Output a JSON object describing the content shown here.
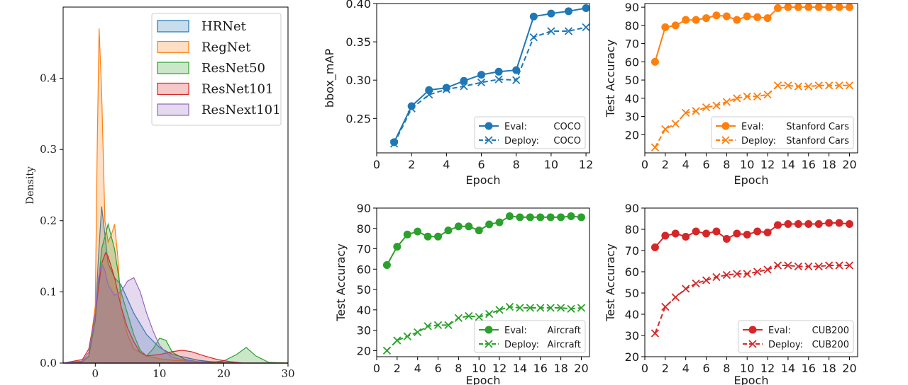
{
  "chart_data": [
    {
      "id": "kde",
      "type": "area",
      "title": "",
      "xlabel": "",
      "ylabel": "Density",
      "xlim": [
        -5,
        30
      ],
      "ylim": [
        0,
        0.5
      ],
      "xticks": [
        0,
        10,
        20,
        30
      ],
      "yticks": [
        0.0,
        0.1,
        0.2,
        0.3,
        0.4
      ],
      "legend": "top-right",
      "series": [
        {
          "name": "HRNet",
          "color": "#1f77b4",
          "x": [
            -5,
            -2,
            -1,
            0,
            0.5,
            1,
            1.5,
            2,
            3,
            4,
            5,
            6,
            8,
            10,
            12,
            14,
            16,
            18,
            20,
            22,
            24,
            26,
            28,
            30
          ],
          "y": [
            0,
            0.002,
            0.01,
            0.06,
            0.15,
            0.22,
            0.18,
            0.14,
            0.12,
            0.11,
            0.09,
            0.07,
            0.04,
            0.022,
            0.012,
            0.008,
            0.004,
            0.002,
            0.001,
            0,
            0,
            0,
            0,
            0
          ]
        },
        {
          "name": "RegNet",
          "color": "#ff7f0e",
          "x": [
            -5,
            -2,
            -1,
            0,
            0.3,
            0.6,
            1,
            1.5,
            2,
            2.5,
            3,
            3.5,
            4,
            5,
            6,
            8,
            10,
            12,
            14,
            16,
            18,
            20,
            25,
            30
          ],
          "y": [
            0,
            0.002,
            0.01,
            0.08,
            0.3,
            0.47,
            0.38,
            0.2,
            0.17,
            0.18,
            0.195,
            0.15,
            0.08,
            0.04,
            0.02,
            0.01,
            0.006,
            0.004,
            0.003,
            0.002,
            0.001,
            0,
            0,
            0
          ]
        },
        {
          "name": "ResNet50",
          "color": "#2ca02c",
          "x": [
            -5,
            -2,
            -1,
            0,
            1,
            2,
            3,
            4,
            5,
            6,
            7,
            8,
            9,
            10,
            11,
            12,
            14,
            16,
            18,
            20,
            22,
            23.5,
            25,
            27,
            30
          ],
          "y": [
            0,
            0.002,
            0.01,
            0.06,
            0.16,
            0.195,
            0.16,
            0.1,
            0.07,
            0.04,
            0.018,
            0.01,
            0.02,
            0.035,
            0.032,
            0.015,
            0.005,
            0.002,
            0.001,
            0.003,
            0.012,
            0.022,
            0.01,
            0.001,
            0
          ]
        },
        {
          "name": "ResNet101",
          "color": "#d62728",
          "x": [
            -5,
            -2,
            -1,
            0,
            1,
            1.6,
            2,
            3,
            4,
            5,
            6,
            7,
            8,
            10,
            12,
            13.5,
            15,
            17,
            19,
            21,
            23,
            25,
            30
          ],
          "y": [
            0,
            0.005,
            0.02,
            0.07,
            0.14,
            0.155,
            0.15,
            0.12,
            0.08,
            0.05,
            0.03,
            0.015,
            0.01,
            0.012,
            0.016,
            0.018,
            0.016,
            0.01,
            0.005,
            0.002,
            0,
            0,
            0
          ]
        },
        {
          "name": "ResNext101",
          "color": "#9467bd",
          "x": [
            -5,
            -2,
            -1,
            0,
            0.5,
            1,
            1.5,
            2,
            3,
            4,
            5,
            6,
            7,
            8,
            9,
            10,
            11,
            12,
            14,
            16,
            18,
            20,
            25,
            30
          ],
          "y": [
            0,
            0.003,
            0.015,
            0.07,
            0.12,
            0.14,
            0.13,
            0.11,
            0.095,
            0.1,
            0.115,
            0.12,
            0.1,
            0.07,
            0.045,
            0.025,
            0.015,
            0.008,
            0.004,
            0.002,
            0,
            0,
            0,
            0
          ]
        }
      ]
    },
    {
      "id": "coco",
      "type": "line",
      "xlabel": "Epoch",
      "ylabel": "bbox_mAP",
      "xlim": [
        0,
        12.2
      ],
      "ylim": [
        0.205,
        0.4
      ],
      "xticks": [
        0,
        2,
        4,
        6,
        8,
        10,
        12
      ],
      "yticks": [
        "0.25",
        "0.30",
        "0.35",
        "0.40"
      ],
      "legend": "bottom-right",
      "color": "#1f77b4",
      "series": [
        {
          "name": "Eval:",
          "dataset": "COCO",
          "style": "solid-dot",
          "x": [
            1,
            2,
            3,
            4,
            5,
            6,
            7,
            8,
            9,
            10,
            11,
            12
          ],
          "values": [
            0.219,
            0.266,
            0.287,
            0.29,
            0.299,
            0.307,
            0.311,
            0.313,
            0.383,
            0.387,
            0.39,
            0.394
          ]
        },
        {
          "name": "Deploy:",
          "dataset": "COCO",
          "style": "dashed-x",
          "x": [
            1,
            2,
            3,
            4,
            5,
            6,
            7,
            8,
            9,
            10,
            11,
            12
          ],
          "values": [
            0.217,
            0.263,
            0.281,
            0.288,
            0.292,
            0.297,
            0.301,
            0.3,
            0.356,
            0.364,
            0.364,
            0.369
          ]
        }
      ]
    },
    {
      "id": "cars",
      "type": "line",
      "xlabel": "Epoch",
      "ylabel": "Test Accuracy",
      "xlim": [
        0,
        20.8
      ],
      "ylim": [
        10,
        92
      ],
      "xticks": [
        0,
        2,
        4,
        6,
        8,
        10,
        12,
        14,
        16,
        18,
        20
      ],
      "yticks": [
        20,
        30,
        40,
        50,
        60,
        70,
        80,
        90
      ],
      "legend": "bottom-right",
      "color": "#ff7f0e",
      "series": [
        {
          "name": "Eval:",
          "dataset": "Stanford Cars",
          "style": "solid-dot",
          "x": [
            1,
            2,
            3,
            4,
            5,
            6,
            7,
            8,
            9,
            10,
            11,
            12,
            13,
            14,
            15,
            16,
            17,
            18,
            19,
            20
          ],
          "values": [
            60,
            79,
            80,
            83,
            83,
            84,
            85.5,
            85,
            83,
            85,
            84.5,
            84,
            89.5,
            90,
            90,
            90,
            90,
            90,
            90,
            90
          ]
        },
        {
          "name": "Deploy:",
          "dataset": "Stanford Cars",
          "style": "dashed-x",
          "x": [
            1,
            2,
            3,
            4,
            5,
            6,
            7,
            8,
            9,
            10,
            11,
            12,
            13,
            14,
            15,
            16,
            17,
            18,
            19,
            20
          ],
          "values": [
            13,
            23,
            26,
            32,
            33,
            35,
            36,
            38,
            40,
            41,
            41,
            42,
            47,
            47,
            46.5,
            46.5,
            47,
            47,
            47,
            47
          ]
        }
      ]
    },
    {
      "id": "aircraft",
      "type": "line",
      "xlabel": "Epoch",
      "ylabel": "Test Accuracy",
      "xlim": [
        0,
        20.8
      ],
      "ylim": [
        17,
        90
      ],
      "xticks": [
        0,
        2,
        4,
        6,
        8,
        10,
        12,
        14,
        16,
        18,
        20
      ],
      "yticks": [
        20,
        30,
        40,
        50,
        60,
        70,
        80,
        90
      ],
      "legend": "bottom-right",
      "color": "#2ca02c",
      "series": [
        {
          "name": "Eval:",
          "dataset": "Aircraft",
          "style": "solid-dot",
          "x": [
            1,
            2,
            3,
            4,
            5,
            6,
            7,
            8,
            9,
            10,
            11,
            12,
            13,
            14,
            15,
            16,
            17,
            18,
            19,
            20
          ],
          "values": [
            62,
            71,
            77,
            78.5,
            76,
            76,
            79,
            81,
            81,
            79,
            82,
            83,
            86,
            85.5,
            85.5,
            85.5,
            85.5,
            85.5,
            86,
            85.5
          ]
        },
        {
          "name": "Deploy:",
          "dataset": "Aircraft",
          "style": "dashed-x",
          "x": [
            1,
            2,
            3,
            4,
            5,
            6,
            7,
            8,
            9,
            10,
            11,
            12,
            13,
            14,
            15,
            16,
            17,
            18,
            19,
            20
          ],
          "values": [
            20,
            25,
            27,
            29,
            32,
            32.5,
            32.5,
            36,
            37,
            36.5,
            38,
            40,
            41.5,
            41,
            41,
            41,
            41,
            41,
            40.5,
            41
          ]
        }
      ]
    },
    {
      "id": "cub",
      "type": "line",
      "xlabel": "Epoch",
      "ylabel": "Test Accuracy",
      "xlim": [
        0,
        20.8
      ],
      "ylim": [
        20,
        90
      ],
      "xticks": [
        0,
        2,
        4,
        6,
        8,
        10,
        12,
        14,
        16,
        18,
        20
      ],
      "yticks": [
        20,
        30,
        40,
        50,
        60,
        70,
        80,
        90
      ],
      "legend": "bottom-right",
      "color": "#d62728",
      "series": [
        {
          "name": "Eval:",
          "dataset": "CUB200",
          "style": "solid-dot",
          "x": [
            1,
            2,
            3,
            4,
            5,
            6,
            7,
            8,
            9,
            10,
            11,
            12,
            13,
            14,
            15,
            16,
            17,
            18,
            19,
            20
          ],
          "values": [
            71.5,
            77,
            78,
            76.5,
            79,
            78,
            79,
            75.5,
            78,
            77.5,
            79,
            78.5,
            82,
            82.5,
            82.5,
            82.5,
            82.5,
            83,
            83,
            82.5
          ]
        },
        {
          "name": "Deploy:",
          "dataset": "CUB200",
          "style": "dashed-x",
          "x": [
            1,
            2,
            3,
            4,
            5,
            6,
            7,
            8,
            9,
            10,
            11,
            12,
            13,
            14,
            15,
            16,
            17,
            18,
            19,
            20
          ],
          "values": [
            31,
            43.5,
            48,
            52,
            54.5,
            56,
            57.5,
            58.5,
            59,
            59,
            60,
            61,
            63,
            63,
            62.5,
            62.5,
            62.5,
            63,
            63,
            63
          ]
        }
      ]
    }
  ]
}
